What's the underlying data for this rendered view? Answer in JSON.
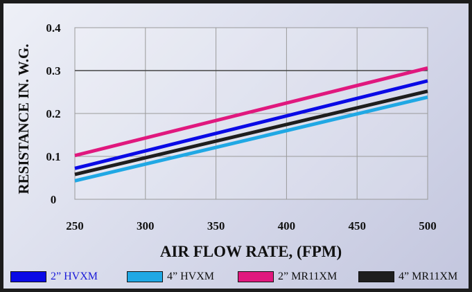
{
  "chart_data": {
    "type": "line",
    "title": "",
    "xlabel": "AIR FLOW RATE, (FPM)",
    "ylabel": "RESISTANCE IN. W.G.",
    "xlim": [
      250,
      500
    ],
    "ylim": [
      0,
      0.4
    ],
    "x_ticks": [
      "250",
      "300",
      "350",
      "400",
      "450",
      "500"
    ],
    "y_ticks": [
      "0",
      "0.1",
      "0.2",
      "0.3",
      "0.4"
    ],
    "grid": true,
    "legend_position": "bottom",
    "series": [
      {
        "name": "2” HVXM",
        "color": "#0a0ae6",
        "label_color": "#1a1ad8",
        "x": [
          250,
          500
        ],
        "y": [
          0.072,
          0.276
        ]
      },
      {
        "name": "4” HVXM",
        "color": "#20a8e4",
        "label_color": "#111111",
        "x": [
          250,
          500
        ],
        "y": [
          0.043,
          0.238
        ]
      },
      {
        "name": "2” MR11XM",
        "color": "#e0187e",
        "label_color": "#111111",
        "x": [
          250,
          500
        ],
        "y": [
          0.102,
          0.306
        ]
      },
      {
        "name": "4” MR11XM",
        "color": "#1e1e1e",
        "label_color": "#111111",
        "x": [
          250,
          500
        ],
        "y": [
          0.058,
          0.252
        ]
      }
    ]
  }
}
